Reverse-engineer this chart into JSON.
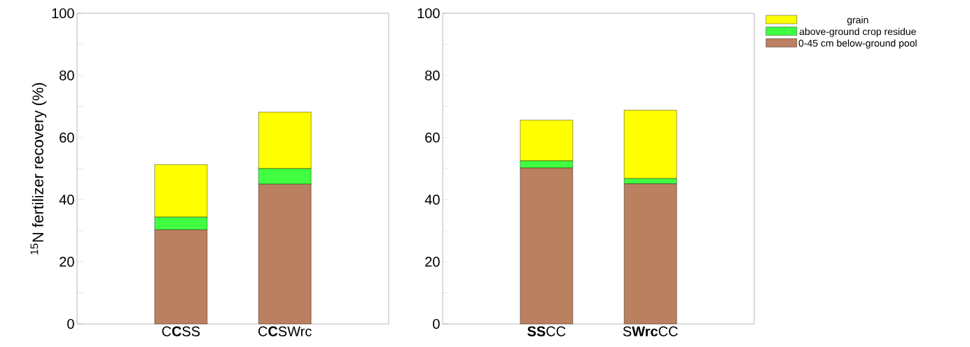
{
  "chart_data": [
    {
      "type": "bar",
      "stacked": true,
      "ylabel": "$^{15}$N fertilizer recovery (%)",
      "categories": [
        "C**C**SS",
        "C**C**SWrc"
      ],
      "ylim": [
        0,
        100
      ],
      "yticks": [
        0,
        {
          "value": 10,
          "label": null
        },
        20,
        {
          "value": 30,
          "label": null
        },
        40,
        {
          "value": 50,
          "label": null
        },
        60,
        {
          "value": 70,
          "label": null
        },
        80,
        {
          "value": 90,
          "label": null
        },
        100
      ],
      "series": [
        {
          "color": "#bb8060",
          "values": [
            30.3,
            45.0
          ]
        },
        {
          "color": "#40ff40",
          "values": [
            4.1,
            5.0
          ]
        },
        {
          "color": "#ffff00",
          "values": [
            16.9,
            18.2
          ]
        }
      ]
    },
    {
      "type": "bar",
      "stacked": true,
      "categories": [
        "**SS**CC",
        "S**Wrc**CC"
      ],
      "ylim": [
        0,
        100
      ],
      "legend": "top right",
      "yticks": [
        0,
        {
          "value": 10,
          "label": null
        },
        20,
        {
          "value": 30,
          "label": null
        },
        40,
        {
          "value": 50,
          "label": null
        },
        60,
        {
          "value": 70,
          "label": null
        },
        80,
        {
          "value": 90,
          "label": null
        },
        100
      ],
      "series": [
        {
          "name": "0-45 cm below-ground pool",
          "color": "#bb8060",
          "values": [
            50.2,
            45.1
          ]
        },
        {
          "name": "above-ground crop residue",
          "color": "#40ff40",
          "values": [
            2.3,
            1.7
          ]
        },
        {
          "name": "grain",
          "color": "#ffff00",
          "values": [
            13.1,
            22.0
          ]
        }
      ]
    }
  ]
}
